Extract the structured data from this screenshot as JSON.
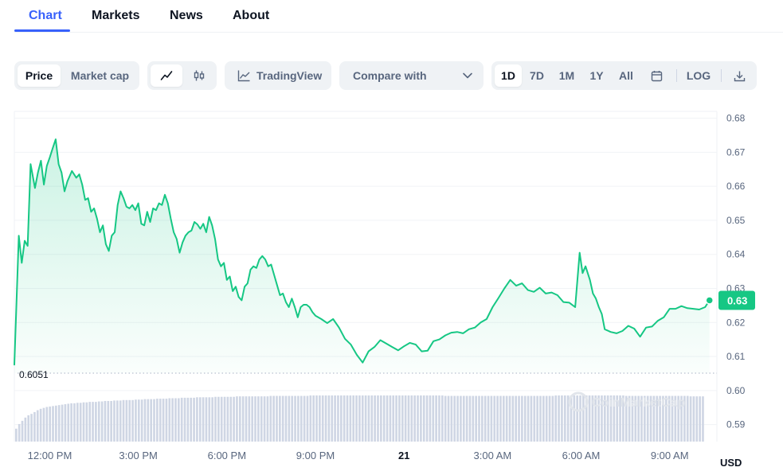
{
  "nav": {
    "tabs": [
      {
        "label": "Chart",
        "active": true
      },
      {
        "label": "Markets",
        "active": false
      },
      {
        "label": "News",
        "active": false
      },
      {
        "label": "About",
        "active": false
      }
    ]
  },
  "toolbar": {
    "metric": {
      "price_label": "Price",
      "market_cap_label": "Market cap",
      "selected": "Price"
    },
    "chart_type": {
      "line_icon": "line-chart-icon",
      "candle_icon": "candlestick-icon",
      "selected": "line"
    },
    "tradingview_label": "TradingView",
    "tradingview_icon": "area-chart-icon",
    "compare_label": "Compare with",
    "compare_icon": "chevron-down-icon",
    "ranges": [
      "1D",
      "7D",
      "1M",
      "1Y",
      "All"
    ],
    "selected_range": "1D",
    "calendar_icon": "calendar-icon",
    "log_label": "LOG",
    "download_icon": "download-icon"
  },
  "chart_data": {
    "type": "line",
    "title": "",
    "xlabel": "",
    "ylabel": "",
    "unit_label": "USD",
    "y_ticks": [
      "0.68",
      "0.67",
      "0.66",
      "0.65",
      "0.64",
      "0.63",
      "0.62",
      "0.61",
      "0.60",
      "0.59"
    ],
    "ylim": [
      0.585,
      0.682
    ],
    "x_ticks": [
      {
        "label": "12:00 PM",
        "hour": 12
      },
      {
        "label": "3:00 PM",
        "hour": 15
      },
      {
        "label": "6:00 PM",
        "hour": 18
      },
      {
        "label": "9:00 PM",
        "hour": 21
      },
      {
        "label": "21",
        "hour": 24
      },
      {
        "label": "3:00 AM",
        "hour": 27
      },
      {
        "label": "6:00 AM",
        "hour": 30
      },
      {
        "label": "9:00 AM",
        "hour": 33
      }
    ],
    "xlim": [
      10.8,
      34.6
    ],
    "current_price_label": "0.63",
    "min_marker_label": "0.6051",
    "min_marker_value": 0.6051,
    "line_color": "#16c784",
    "current_badge_color": "#16c784",
    "series": [
      {
        "x": [
          10.8,
          10.95,
          11.05,
          11.15,
          11.25,
          11.35,
          11.5,
          11.6,
          11.7,
          11.8,
          11.9,
          12.0,
          12.1,
          12.2,
          12.3,
          12.4,
          12.5,
          12.6,
          12.75,
          12.9,
          13.0,
          13.1,
          13.2,
          13.3,
          13.4,
          13.5,
          13.6,
          13.7,
          13.8,
          13.9,
          14.0,
          14.1,
          14.2,
          14.3,
          14.4,
          14.5,
          14.6,
          14.7,
          14.8,
          14.9,
          15.0,
          15.1,
          15.2,
          15.3,
          15.4,
          15.5,
          15.6,
          15.7,
          15.8,
          15.9,
          16.0,
          16.1,
          16.2,
          16.3,
          16.4,
          16.5,
          16.6,
          16.7,
          16.8,
          16.9,
          17.0,
          17.1,
          17.2,
          17.3,
          17.4,
          17.5,
          17.6,
          17.7,
          17.8,
          17.9,
          18.0,
          18.1,
          18.2,
          18.3,
          18.4,
          18.5,
          18.6,
          18.7,
          18.8,
          18.9,
          19.0,
          19.1,
          19.2,
          19.3,
          19.4,
          19.5,
          19.6,
          19.7,
          19.8,
          19.9,
          20.0,
          20.1,
          20.2,
          20.3,
          20.4,
          20.5,
          20.6,
          20.7,
          20.8,
          20.9,
          21.0,
          21.2,
          21.4,
          21.6,
          21.8,
          22.0,
          22.2,
          22.4,
          22.6,
          22.8,
          23.0,
          23.2,
          23.4,
          23.6,
          23.8,
          24.0,
          24.2,
          24.4,
          24.6,
          24.8,
          25.0,
          25.2,
          25.4,
          25.6,
          25.8,
          26.0,
          26.2,
          26.4,
          26.6,
          26.8,
          27.0,
          27.2,
          27.4,
          27.6,
          27.8,
          28.0,
          28.2,
          28.4,
          28.6,
          28.8,
          29.0,
          29.2,
          29.4,
          29.6,
          29.8,
          29.95,
          30.05,
          30.15,
          30.3,
          30.4,
          30.5,
          30.6,
          30.7,
          30.8,
          31.0,
          31.2,
          31.4,
          31.6,
          31.8,
          32.0,
          32.2,
          32.4,
          32.6,
          32.8,
          33.0,
          33.2,
          33.4,
          33.6,
          33.8,
          34.0,
          34.2,
          34.35
        ],
        "values": [
          0.6076,
          0.6455,
          0.6375,
          0.644,
          0.6425,
          0.6665,
          0.6595,
          0.664,
          0.6675,
          0.6605,
          0.666,
          0.6685,
          0.6712,
          0.6738,
          0.6665,
          0.664,
          0.6585,
          0.6615,
          0.6645,
          0.6625,
          0.6635,
          0.6605,
          0.656,
          0.6565,
          0.6525,
          0.6535,
          0.6505,
          0.6465,
          0.6485,
          0.643,
          0.641,
          0.6455,
          0.6465,
          0.6545,
          0.6585,
          0.6565,
          0.654,
          0.6535,
          0.6545,
          0.653,
          0.655,
          0.649,
          0.6485,
          0.6525,
          0.6495,
          0.6535,
          0.653,
          0.655,
          0.6545,
          0.6575,
          0.655,
          0.6505,
          0.6465,
          0.6445,
          0.6405,
          0.6435,
          0.6455,
          0.6465,
          0.647,
          0.6495,
          0.6488,
          0.6475,
          0.649,
          0.6465,
          0.651,
          0.6485,
          0.6445,
          0.6385,
          0.6365,
          0.6375,
          0.6325,
          0.6335,
          0.6292,
          0.6305,
          0.6275,
          0.6265,
          0.6305,
          0.6315,
          0.6355,
          0.6365,
          0.636,
          0.6385,
          0.6395,
          0.6385,
          0.6365,
          0.637,
          0.634,
          0.631,
          0.628,
          0.6285,
          0.626,
          0.6245,
          0.627,
          0.6245,
          0.6215,
          0.6245,
          0.6252,
          0.6252,
          0.6245,
          0.623,
          0.622,
          0.621,
          0.6198,
          0.621,
          0.6185,
          0.6152,
          0.6135,
          0.6105,
          0.6082,
          0.6115,
          0.6128,
          0.6148,
          0.6138,
          0.6128,
          0.6118,
          0.613,
          0.614,
          0.6135,
          0.6115,
          0.6117,
          0.6145,
          0.615,
          0.6162,
          0.617,
          0.6172,
          0.6168,
          0.618,
          0.6185,
          0.62,
          0.621,
          0.6245,
          0.6272,
          0.63,
          0.6325,
          0.6308,
          0.6315,
          0.6295,
          0.629,
          0.6302,
          0.6285,
          0.6288,
          0.628,
          0.626,
          0.6258,
          0.6245,
          0.6405,
          0.6345,
          0.6365,
          0.6325,
          0.6285,
          0.627,
          0.6245,
          0.6225,
          0.618,
          0.6172,
          0.6168,
          0.6175,
          0.619,
          0.6182,
          0.6158,
          0.6185,
          0.6188,
          0.6205,
          0.6215,
          0.624,
          0.624,
          0.6248,
          0.6242,
          0.624,
          0.6238,
          0.6245,
          0.6265
        ]
      }
    ],
    "volume_relative": [
      0.28,
      0.38,
      0.45,
      0.52,
      0.57,
      0.6,
      0.64,
      0.68,
      0.71,
      0.73,
      0.75,
      0.76,
      0.77,
      0.78,
      0.79,
      0.8,
      0.81,
      0.82,
      0.83,
      0.83,
      0.84,
      0.84,
      0.85,
      0.85,
      0.86,
      0.86,
      0.86,
      0.87,
      0.87,
      0.88,
      0.88,
      0.88,
      0.89,
      0.89,
      0.89,
      0.9,
      0.9,
      0.9,
      0.9,
      0.91,
      0.91,
      0.91,
      0.92,
      0.92,
      0.92,
      0.92,
      0.93,
      0.93,
      0.93,
      0.93,
      0.94,
      0.94,
      0.94,
      0.94,
      0.95,
      0.95,
      0.95,
      0.95,
      0.95,
      0.96,
      0.96,
      0.96,
      0.96,
      0.96,
      0.96,
      0.97,
      0.97,
      0.97,
      0.97,
      0.97,
      0.97,
      0.97,
      0.98,
      0.98,
      0.98,
      0.98,
      0.98,
      0.98,
      0.98,
      0.98,
      0.98,
      0.98,
      0.98,
      0.99,
      0.99,
      0.99,
      0.99,
      0.99,
      0.99,
      0.99,
      0.99,
      0.99,
      0.99,
      0.99,
      0.99,
      0.99,
      1.0,
      1.0,
      1.0,
      1.0,
      1.0,
      1.0,
      1.0,
      1.0,
      1.0,
      1.0,
      1.0,
      1.0,
      1.0,
      1.0,
      1.0,
      1.0,
      1.0,
      1.0,
      1.0,
      1.0,
      1.0,
      1.0,
      1.0,
      1.0,
      1.0,
      1.0,
      1.0,
      1.0,
      1.0,
      1.0,
      1.0,
      1.0,
      1.0,
      1.0,
      1.0,
      1.0,
      1.0,
      1.0,
      1.0,
      1.0,
      1.0,
      1.0,
      1.0,
      1.0,
      0.99,
      0.99,
      0.99,
      0.99,
      0.99,
      0.99,
      0.99,
      0.99,
      0.99,
      0.99,
      0.99,
      0.99,
      0.99,
      0.99,
      0.99,
      0.99,
      0.99,
      0.99,
      0.99,
      0.99,
      0.99,
      0.99,
      0.99,
      0.99,
      0.99,
      0.99,
      0.99,
      0.99,
      0.99,
      0.99,
      0.99,
      0.99,
      0.99,
      0.99,
      0.99,
      0.99,
      1.0,
      1.0,
      1.0,
      1.0,
      1.0,
      1.0,
      1.0,
      1.0,
      1.0,
      1.0,
      1.0,
      1.0,
      1.0,
      1.0,
      1.0,
      1.0,
      1.0,
      1.0,
      1.0,
      1.0,
      1.0,
      1.0,
      1.0,
      0.99,
      0.99,
      0.99,
      0.99,
      0.99,
      0.99,
      0.99,
      0.99,
      0.99,
      0.99,
      0.99,
      0.99,
      0.99,
      0.99,
      0.99,
      0.99,
      0.99,
      0.99,
      0.99,
      0.99,
      0.99,
      0.98,
      0.98,
      0.98,
      0.98,
      0.98
    ],
    "grid": true,
    "watermark": "CoinMarketCap"
  }
}
